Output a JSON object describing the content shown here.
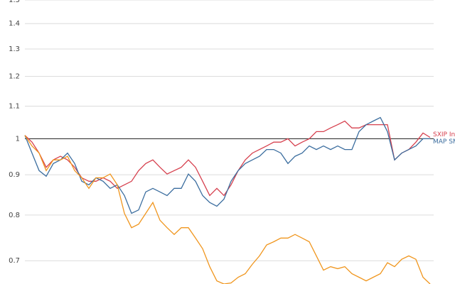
{
  "chart_data": {
    "type": "line",
    "log_y": true,
    "grid": true,
    "reference_line": 1,
    "ylim": [
      0.654,
      1.5
    ],
    "yticks": [
      0.7,
      0.8,
      0.9,
      1,
      1.1,
      1.2,
      1.3,
      1.4,
      1.5
    ],
    "series": [
      {
        "name": "SXIP In",
        "color": "#d6404e",
        "values": [
          1.01,
          0.99,
          0.959,
          0.92,
          0.94,
          0.95,
          0.94,
          0.92,
          0.892,
          0.883,
          0.883,
          0.892,
          0.883,
          0.865,
          0.874,
          0.883,
          0.911,
          0.93,
          0.94,
          0.92,
          0.902,
          0.911,
          0.92,
          0.94,
          0.92,
          0.883,
          0.847,
          0.865,
          0.847,
          0.874,
          0.911,
          0.94,
          0.959,
          0.969,
          0.979,
          0.99,
          0.99,
          1.0,
          0.979,
          0.99,
          1.0,
          1.021,
          1.021,
          1.032,
          1.042,
          1.053,
          1.032,
          1.032,
          1.042,
          1.042,
          1.042,
          1.042,
          0.94,
          0.959,
          0.969,
          0.99,
          1.017,
          1.004
        ]
      },
      {
        "name": "MAP SM",
        "color": "#3c6e9f",
        "values": [
          1.01,
          0.959,
          0.911,
          0.896,
          0.93,
          0.94,
          0.959,
          0.93,
          0.883,
          0.874,
          0.892,
          0.883,
          0.865,
          0.874,
          0.847,
          0.804,
          0.812,
          0.856,
          0.865,
          0.856,
          0.847,
          0.865,
          0.865,
          0.902,
          0.883,
          0.847,
          0.83,
          0.821,
          0.838,
          0.883,
          0.911,
          0.93,
          0.94,
          0.95,
          0.969,
          0.969,
          0.959,
          0.93,
          0.95,
          0.959,
          0.979,
          0.969,
          0.979,
          0.969,
          0.979,
          0.969,
          0.969,
          1.021,
          1.042,
          1.053,
          1.064,
          1.021,
          0.94,
          0.959,
          0.969,
          0.979,
          1.0,
          1.0
        ]
      },
      {
        "name": "",
        "color": "#f0961e",
        "values": [
          1.01,
          0.979,
          0.959,
          0.911,
          0.94,
          0.94,
          0.95,
          0.911,
          0.892,
          0.865,
          0.892,
          0.892,
          0.902,
          0.874,
          0.804,
          0.771,
          0.779,
          0.804,
          0.83,
          0.788,
          0.771,
          0.756,
          0.771,
          0.771,
          0.748,
          0.725,
          0.688,
          0.66,
          0.654,
          0.656,
          0.667,
          0.674,
          0.693,
          0.71,
          0.733,
          0.74,
          0.748,
          0.748,
          0.756,
          0.748,
          0.74,
          0.71,
          0.681,
          0.688,
          0.684,
          0.688,
          0.674,
          0.667,
          0.66,
          0.667,
          0.674,
          0.696,
          0.688,
          0.703,
          0.71,
          0.703,
          0.667,
          0.654
        ]
      }
    ]
  }
}
